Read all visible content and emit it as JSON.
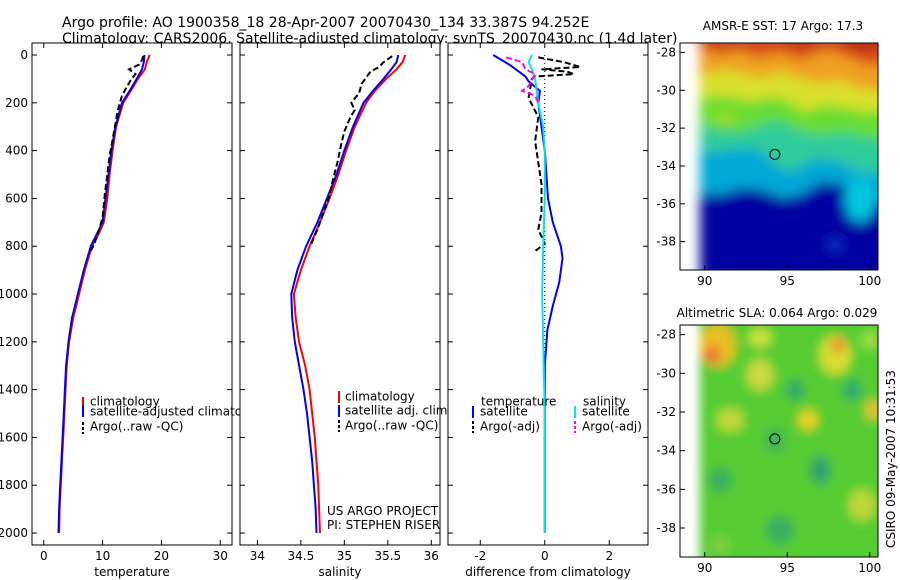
{
  "title_line1": "Argo profile: AO 1900358_18 28-Apr-2007 20070430_134 33.387S 94.252E",
  "title_line2": "Climatology: CARS2006. Satellite-adjusted climatology: synTS_20070430.nc (1.4d later)",
  "side_label": "CSIRO 09-May-2007 10:31:53",
  "colors": {
    "red": "#ff0000",
    "blue": "#0000ff",
    "black": "#000000",
    "cyan": "#00e5ee",
    "magenta": "#ff00ff"
  },
  "chart_data": [
    {
      "type": "line",
      "xlabel": "temperature",
      "xlim": [
        -2,
        32
      ],
      "ylim": [
        0,
        2050
      ],
      "xticks": [
        "0",
        "10",
        "20",
        "30"
      ],
      "yticks": [
        "0",
        "200",
        "400",
        "600",
        "800",
        "1000",
        "1200",
        "1400",
        "1600",
        "1800",
        "2000"
      ],
      "legend": [
        "climatology",
        "satellite-adjusted climatology",
        "Argo(..raw -QC)"
      ],
      "series": [
        {
          "name": "climatology",
          "color": "red",
          "points": [
            [
              18,
              0
            ],
            [
              17.5,
              30
            ],
            [
              17.2,
              60
            ],
            [
              16,
              100
            ],
            [
              14.8,
              150
            ],
            [
              13.5,
              200
            ],
            [
              12.3,
              300
            ],
            [
              11.7,
              400
            ],
            [
              11.2,
              500
            ],
            [
              10.8,
              600
            ],
            [
              10.2,
              700
            ],
            [
              9.3,
              750
            ],
            [
              8.2,
              800
            ],
            [
              7,
              900
            ],
            [
              6,
              1000
            ],
            [
              5,
              1100
            ],
            [
              4.3,
              1200
            ],
            [
              3.9,
              1300
            ],
            [
              3.7,
              1400
            ],
            [
              3.5,
              1500
            ],
            [
              3.3,
              1600
            ],
            [
              3.1,
              1700
            ],
            [
              2.9,
              1800
            ],
            [
              2.7,
              1900
            ],
            [
              2.6,
              2000
            ]
          ]
        },
        {
          "name": "satellite-adjusted climatology",
          "color": "blue",
          "points": [
            [
              17.1,
              0
            ],
            [
              17,
              30
            ],
            [
              16.7,
              60
            ],
            [
              15.8,
              100
            ],
            [
              14.6,
              150
            ],
            [
              13.3,
              200
            ],
            [
              12.2,
              300
            ],
            [
              11.5,
              400
            ],
            [
              11,
              500
            ],
            [
              10.5,
              600
            ],
            [
              10,
              700
            ],
            [
              9,
              750
            ],
            [
              8,
              800
            ],
            [
              6.8,
              900
            ],
            [
              5.8,
              1000
            ],
            [
              4.8,
              1100
            ],
            [
              4.2,
              1200
            ],
            [
              3.8,
              1300
            ],
            [
              3.6,
              1400
            ],
            [
              3.4,
              1500
            ],
            [
              3.2,
              1600
            ],
            [
              3,
              1700
            ],
            [
              2.8,
              1800
            ],
            [
              2.6,
              1900
            ],
            [
              2.5,
              2000
            ]
          ]
        },
        {
          "name": "Argo(..raw -QC)",
          "color": "black",
          "points": [
            [
              16.9,
              5
            ],
            [
              16.7,
              20
            ],
            [
              16.5,
              30
            ],
            [
              16.2,
              40
            ],
            [
              14.5,
              60
            ],
            [
              15.6,
              80
            ],
            [
              14.9,
              100
            ],
            [
              14.2,
              130
            ],
            [
              13.3,
              170
            ],
            [
              12.6,
              230
            ],
            [
              12.1,
              300
            ],
            [
              11.6,
              370
            ],
            [
              11.2,
              420
            ],
            [
              10.8,
              500
            ],
            [
              10.4,
              580
            ],
            [
              10,
              680
            ],
            [
              9.4,
              730
            ],
            [
              8.6,
              790
            ],
            [
              7.8,
              830
            ]
          ]
        }
      ]
    },
    {
      "type": "line",
      "xlabel": "salinity",
      "xlim": [
        33.8,
        36.1
      ],
      "ylim": [
        0,
        2050
      ],
      "xticks": [
        "34",
        "34.5",
        "35",
        "35.5",
        "36"
      ],
      "legend": [
        "climatology",
        "satellite adj. clim.",
        "Argo(..raw -QC)"
      ],
      "annotation": [
        "US ARGO PROJECT",
        "PI: STEPHEN RISER"
      ],
      "series": [
        {
          "name": "climatology",
          "color": "red",
          "points": [
            [
              35.7,
              0
            ],
            [
              35.67,
              30
            ],
            [
              35.6,
              60
            ],
            [
              35.48,
              100
            ],
            [
              35.35,
              150
            ],
            [
              35.25,
              200
            ],
            [
              35.12,
              300
            ],
            [
              35.02,
              400
            ],
            [
              34.93,
              500
            ],
            [
              34.83,
              600
            ],
            [
              34.72,
              700
            ],
            [
              34.6,
              800
            ],
            [
              34.5,
              900
            ],
            [
              34.42,
              1000
            ],
            [
              34.44,
              1100
            ],
            [
              34.48,
              1200
            ],
            [
              34.55,
              1300
            ],
            [
              34.6,
              1400
            ],
            [
              34.63,
              1500
            ],
            [
              34.66,
              1600
            ],
            [
              34.68,
              1700
            ],
            [
              34.7,
              1800
            ],
            [
              34.71,
              1900
            ],
            [
              34.72,
              2000
            ]
          ]
        },
        {
          "name": "satellite adj. clim.",
          "color": "blue",
          "points": [
            [
              35.62,
              0
            ],
            [
              35.6,
              30
            ],
            [
              35.54,
              60
            ],
            [
              35.45,
              100
            ],
            [
              35.33,
              150
            ],
            [
              35.22,
              200
            ],
            [
              35.1,
              300
            ],
            [
              35,
              400
            ],
            [
              34.91,
              500
            ],
            [
              34.8,
              600
            ],
            [
              34.69,
              700
            ],
            [
              34.56,
              800
            ],
            [
              34.46,
              900
            ],
            [
              34.39,
              1000
            ],
            [
              34.4,
              1100
            ],
            [
              34.43,
              1200
            ],
            [
              34.48,
              1300
            ],
            [
              34.53,
              1400
            ],
            [
              34.57,
              1500
            ],
            [
              34.6,
              1600
            ],
            [
              34.63,
              1700
            ],
            [
              34.65,
              1800
            ],
            [
              34.67,
              1900
            ],
            [
              34.68,
              2000
            ]
          ]
        },
        {
          "name": "Argo(..raw -QC)",
          "color": "black",
          "points": [
            [
              35.55,
              5
            ],
            [
              35.45,
              30
            ],
            [
              35.4,
              50
            ],
            [
              35.3,
              70
            ],
            [
              35.2,
              120
            ],
            [
              35.17,
              160
            ],
            [
              35.08,
              200
            ],
            [
              35.12,
              230
            ],
            [
              35.07,
              260
            ],
            [
              35,
              320
            ],
            [
              34.96,
              380
            ],
            [
              34.92,
              450
            ],
            [
              34.87,
              520
            ],
            [
              34.82,
              600
            ],
            [
              34.74,
              680
            ],
            [
              34.69,
              730
            ],
            [
              34.62,
              790
            ]
          ]
        }
      ]
    },
    {
      "type": "line",
      "xlabel": "difference from climatology",
      "xlim": [
        -3,
        3.2
      ],
      "ylim": [
        0,
        2050
      ],
      "xticks": [
        "-2",
        "0",
        "2"
      ],
      "legend_headers": [
        "temperature",
        "salinity"
      ],
      "legend": [
        "satellite",
        "Argo(-adj)",
        "satellite",
        "Argo(-adj)"
      ],
      "series": [
        {
          "name": "satellite",
          "color": "blue",
          "points": [
            [
              -1.6,
              0
            ],
            [
              -1.1,
              40
            ],
            [
              -0.8,
              70
            ],
            [
              -0.6,
              90
            ],
            [
              -0.5,
              110
            ],
            [
              -0.15,
              150
            ],
            [
              -0.2,
              200
            ],
            [
              -0.1,
              300
            ],
            [
              0,
              400
            ],
            [
              0.05,
              500
            ],
            [
              0.1,
              600
            ],
            [
              0.25,
              700
            ],
            [
              0.5,
              800
            ],
            [
              0.55,
              850
            ],
            [
              0.45,
              950
            ],
            [
              0.25,
              1050
            ],
            [
              0.08,
              1150
            ],
            [
              0,
              1300
            ],
            [
              0,
              1500
            ],
            [
              0,
              2000
            ]
          ]
        },
        {
          "name": "Argo(-adj)",
          "color": "black",
          "points": [
            [
              -0.2,
              10
            ],
            [
              0.6,
              30
            ],
            [
              1.1,
              50
            ],
            [
              -0.1,
              60
            ],
            [
              0.7,
              70
            ],
            [
              0.9,
              80
            ],
            [
              -0.3,
              90
            ],
            [
              -0.4,
              100
            ],
            [
              -0.5,
              180
            ],
            [
              -0.2,
              260
            ],
            [
              -0.3,
              360
            ],
            [
              -0.2,
              450
            ],
            [
              -0.1,
              540
            ],
            [
              -0.1,
              660
            ],
            [
              -0.2,
              730
            ],
            [
              0,
              790
            ],
            [
              -0.3,
              820
            ]
          ]
        },
        {
          "name": "satellite",
          "color": "cyan",
          "points": [
            [
              -0.4,
              0
            ],
            [
              -0.5,
              30
            ],
            [
              -0.4,
              60
            ],
            [
              -0.3,
              100
            ],
            [
              -0.2,
              200
            ],
            [
              -0.05,
              300
            ],
            [
              0,
              400
            ],
            [
              0,
              600
            ],
            [
              -0.05,
              800
            ],
            [
              -0.08,
              1000
            ],
            [
              -0.05,
              1200
            ],
            [
              0,
              1500
            ],
            [
              0,
              2000
            ]
          ]
        },
        {
          "name": "Argo(-adj)",
          "color": "magenta",
          "points": [
            [
              -1.2,
              10
            ],
            [
              -0.7,
              30
            ],
            [
              -0.6,
              60
            ],
            [
              -0.3,
              80
            ],
            [
              -0.5,
              130
            ],
            [
              -0.7,
              150
            ],
            [
              -0.3,
              170
            ],
            [
              -0.2,
              200
            ]
          ]
        }
      ]
    },
    {
      "type": "heatmap",
      "title": "AMSR-E SST: 17 Argo: 17.3",
      "xlim": [
        88.5,
        100.5
      ],
      "ylim": [
        -39.5,
        -27.5
      ],
      "xticks": [
        "90",
        "95",
        "100"
      ],
      "yticks": [
        "-28",
        "-30",
        "-32",
        "-34",
        "-36",
        "-38"
      ],
      "marker": [
        94.25,
        -33.39
      ]
    },
    {
      "type": "heatmap",
      "title": "Altimetric SLA: 0.064 Argo: 0.029",
      "xlim": [
        88.5,
        100.5
      ],
      "ylim": [
        -39.5,
        -27.5
      ],
      "xticks": [
        "90",
        "95",
        "100"
      ],
      "yticks": [
        "-28",
        "-30",
        "-32",
        "-34",
        "-36",
        "-38"
      ],
      "marker": [
        94.25,
        -33.39
      ]
    }
  ]
}
